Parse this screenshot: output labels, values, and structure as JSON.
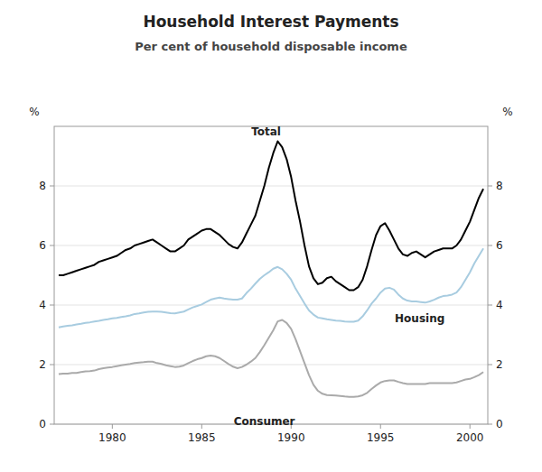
{
  "chart_data": {
    "type": "line",
    "title": "Household Interest Payments",
    "subtitle": "Per cent of household disposable income",
    "y_label": "%",
    "y2_label": "%",
    "xlim": [
      1976.75,
      2001.0
    ],
    "ylim": [
      0,
      10
    ],
    "y2lim": [
      0,
      10
    ],
    "xticks": [
      1980,
      1985,
      1990,
      1995,
      2000
    ],
    "yticks": [
      0,
      2,
      4,
      6,
      8
    ],
    "y2ticks": [
      0,
      2,
      4,
      6,
      8
    ],
    "grid": true,
    "x": [
      1977.0,
      1977.25,
      1977.5,
      1977.75,
      1978.0,
      1978.25,
      1978.5,
      1978.75,
      1979.0,
      1979.25,
      1979.5,
      1979.75,
      1980.0,
      1980.25,
      1980.5,
      1980.75,
      1981.0,
      1981.25,
      1981.5,
      1981.75,
      1982.0,
      1982.25,
      1982.5,
      1982.75,
      1983.0,
      1983.25,
      1983.5,
      1983.75,
      1984.0,
      1984.25,
      1984.5,
      1984.75,
      1985.0,
      1985.25,
      1985.5,
      1985.75,
      1986.0,
      1986.25,
      1986.5,
      1986.75,
      1987.0,
      1987.25,
      1987.5,
      1987.75,
      1988.0,
      1988.25,
      1988.5,
      1988.75,
      1989.0,
      1989.25,
      1989.5,
      1989.75,
      1990.0,
      1990.25,
      1990.5,
      1990.75,
      1991.0,
      1991.25,
      1991.5,
      1991.75,
      1992.0,
      1992.25,
      1992.5,
      1992.75,
      1993.0,
      1993.25,
      1993.5,
      1993.75,
      1994.0,
      1994.25,
      1994.5,
      1994.75,
      1995.0,
      1995.25,
      1995.5,
      1995.75,
      1996.0,
      1996.25,
      1996.5,
      1996.75,
      1997.0,
      1997.25,
      1997.5,
      1997.75,
      1998.0,
      1998.25,
      1998.5,
      1998.75,
      1999.0,
      1999.25,
      1999.5,
      1999.75,
      2000.0,
      2000.25,
      2000.5,
      2000.75
    ],
    "series": [
      {
        "name": "Total",
        "color": "#000000",
        "annotation": {
          "x": 1988.6,
          "y": 9.55
        },
        "values": [
          5.0,
          5.0,
          5.05,
          5.1,
          5.15,
          5.2,
          5.25,
          5.3,
          5.35,
          5.45,
          5.5,
          5.55,
          5.6,
          5.65,
          5.75,
          5.85,
          5.9,
          6.0,
          6.05,
          6.1,
          6.15,
          6.2,
          6.1,
          6.0,
          5.9,
          5.8,
          5.8,
          5.9,
          6.0,
          6.2,
          6.3,
          6.4,
          6.5,
          6.55,
          6.55,
          6.45,
          6.35,
          6.2,
          6.05,
          5.95,
          5.9,
          6.1,
          6.4,
          6.7,
          7.0,
          7.5,
          8.0,
          8.6,
          9.1,
          9.5,
          9.3,
          8.9,
          8.3,
          7.5,
          6.8,
          6.0,
          5.3,
          4.9,
          4.7,
          4.75,
          4.9,
          4.95,
          4.8,
          4.7,
          4.6,
          4.5,
          4.5,
          4.6,
          4.85,
          5.3,
          5.85,
          6.35,
          6.65,
          6.75,
          6.5,
          6.2,
          5.9,
          5.7,
          5.65,
          5.75,
          5.8,
          5.7,
          5.6,
          5.7,
          5.8,
          5.85,
          5.9,
          5.9,
          5.9,
          6.0,
          6.2,
          6.5,
          6.8,
          7.2,
          7.6,
          7.9
        ]
      },
      {
        "name": "Housing",
        "color": "#a8cce0",
        "annotation": {
          "x": 1995.8,
          "y": 3.55
        },
        "values": [
          3.25,
          3.28,
          3.3,
          3.32,
          3.35,
          3.37,
          3.4,
          3.42,
          3.45,
          3.47,
          3.5,
          3.52,
          3.55,
          3.57,
          3.6,
          3.62,
          3.65,
          3.7,
          3.72,
          3.75,
          3.77,
          3.78,
          3.78,
          3.77,
          3.75,
          3.73,
          3.72,
          3.75,
          3.78,
          3.85,
          3.92,
          3.97,
          4.02,
          4.1,
          4.18,
          4.22,
          4.25,
          4.22,
          4.2,
          4.18,
          4.18,
          4.22,
          4.4,
          4.55,
          4.72,
          4.88,
          5.0,
          5.1,
          5.22,
          5.28,
          5.2,
          5.05,
          4.85,
          4.55,
          4.3,
          4.05,
          3.82,
          3.68,
          3.58,
          3.55,
          3.52,
          3.5,
          3.48,
          3.47,
          3.45,
          3.44,
          3.44,
          3.48,
          3.62,
          3.82,
          4.05,
          4.22,
          4.42,
          4.55,
          4.58,
          4.52,
          4.35,
          4.22,
          4.15,
          4.12,
          4.12,
          4.1,
          4.08,
          4.12,
          4.18,
          4.25,
          4.3,
          4.32,
          4.35,
          4.42,
          4.6,
          4.85,
          5.1,
          5.4,
          5.65,
          5.9
        ]
      },
      {
        "name": "Consumer",
        "color": "#aaaaaa",
        "annotation": {
          "x": 1988.5,
          "y": 0.42
        },
        "values": [
          1.68,
          1.7,
          1.7,
          1.72,
          1.72,
          1.75,
          1.77,
          1.78,
          1.8,
          1.85,
          1.88,
          1.9,
          1.92,
          1.95,
          1.98,
          2.0,
          2.02,
          2.05,
          2.07,
          2.08,
          2.1,
          2.1,
          2.05,
          2.02,
          1.98,
          1.95,
          1.92,
          1.93,
          1.97,
          2.05,
          2.12,
          2.18,
          2.22,
          2.28,
          2.3,
          2.28,
          2.22,
          2.12,
          2.02,
          1.93,
          1.88,
          1.92,
          2.0,
          2.1,
          2.22,
          2.42,
          2.65,
          2.9,
          3.15,
          3.45,
          3.5,
          3.4,
          3.2,
          2.85,
          2.45,
          2.05,
          1.65,
          1.32,
          1.12,
          1.02,
          0.98,
          0.97,
          0.96,
          0.95,
          0.93,
          0.92,
          0.92,
          0.93,
          0.97,
          1.05,
          1.18,
          1.3,
          1.4,
          1.45,
          1.47,
          1.47,
          1.42,
          1.38,
          1.35,
          1.35,
          1.35,
          1.35,
          1.35,
          1.38,
          1.38,
          1.38,
          1.38,
          1.38,
          1.38,
          1.4,
          1.45,
          1.5,
          1.52,
          1.58,
          1.65,
          1.75
        ]
      }
    ]
  }
}
